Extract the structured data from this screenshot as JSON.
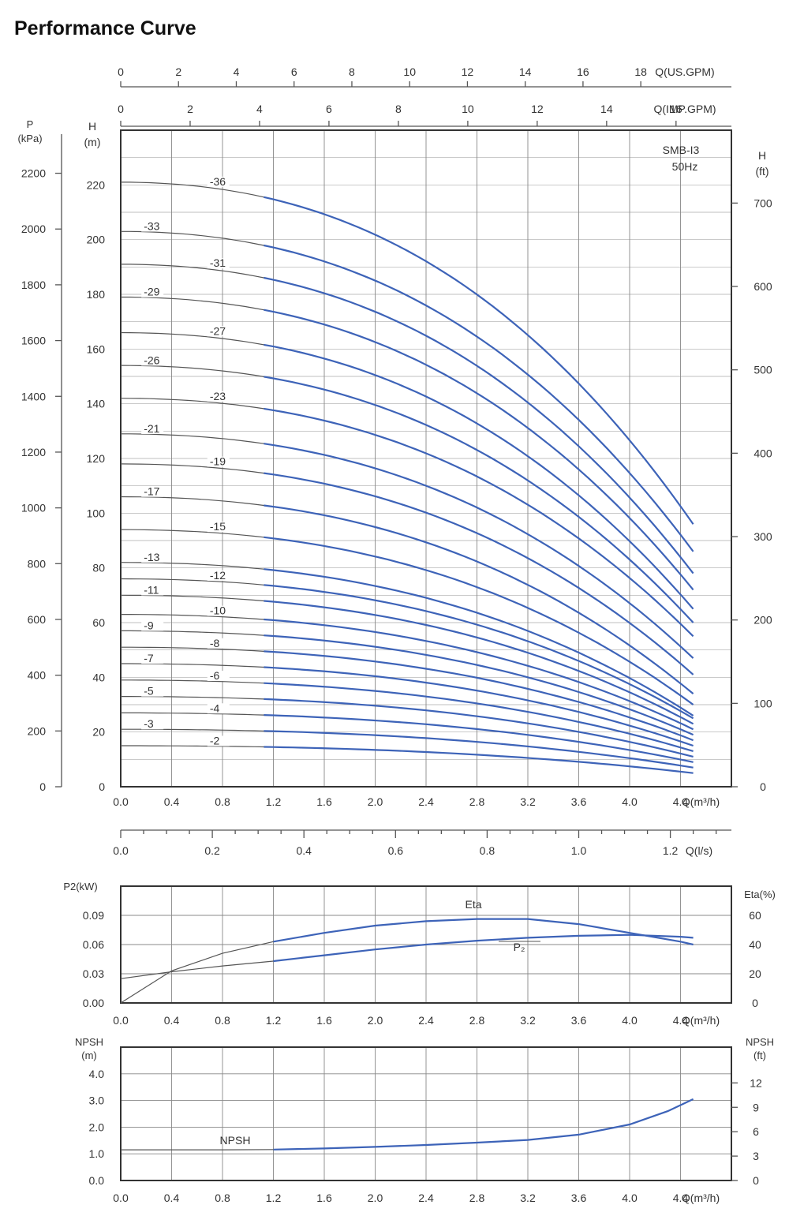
{
  "title": "Performance Curve",
  "colors": {
    "curve": "#3d63b8",
    "curve_low": "#555555",
    "grid": "#888888",
    "frame": "#333333"
  },
  "chart_data": [
    {
      "type": "line",
      "id": "head",
      "model": [
        "SMB-I3",
        "50Hz"
      ],
      "x_unit_label": "Q(m³/h)",
      "xlim": [
        0,
        4.8
      ],
      "ylim": [
        0,
        240
      ],
      "x_ticks": [
        "0.0",
        "0.4",
        "0.8",
        "1.2",
        "1.6",
        "2.0",
        "2.4",
        "2.8",
        "3.2",
        "3.6",
        "4.0",
        "4.4"
      ],
      "left_axis": {
        "label": [
          "H",
          "(m)"
        ],
        "ticks": [
          "0",
          "20",
          "40",
          "60",
          "80",
          "100",
          "120",
          "140",
          "160",
          "180",
          "200",
          "220"
        ]
      },
      "pressure_axis": {
        "label": [
          "P",
          "(kPa)"
        ],
        "ticks": [
          "0",
          "200",
          "400",
          "600",
          "800",
          "1000",
          "1200",
          "1400",
          "1600",
          "1800",
          "2000",
          "2200"
        ]
      },
      "right_axis": {
        "label": [
          "H",
          "(ft)"
        ],
        "ticks": [
          "0",
          "100",
          "200",
          "300",
          "400",
          "500",
          "600",
          "700"
        ]
      },
      "top_axis_us": {
        "label": "Q(US.GPM)",
        "ticks": [
          "0",
          "2",
          "4",
          "6",
          "8",
          "10",
          "12",
          "14",
          "16",
          "18"
        ]
      },
      "top_axis_imp": {
        "label": "Q(IMP.GPM)",
        "ticks": [
          "0",
          "2",
          "4",
          "6",
          "8",
          "10",
          "12",
          "14",
          "16"
        ]
      },
      "bottom_axis_ls": {
        "label": "Q(l/s)",
        "ticks": [
          "0.0",
          "0.2",
          "0.4",
          "0.6",
          "0.8",
          "1.0",
          "1.2"
        ]
      },
      "series": [
        {
          "name": "-36",
          "shutoff": 221,
          "at_max": 96
        },
        {
          "name": "-33",
          "shutoff": 203,
          "at_max": 86
        },
        {
          "name": "-31",
          "shutoff": 191,
          "at_max": 78
        },
        {
          "name": "-29",
          "shutoff": 179,
          "at_max": 72
        },
        {
          "name": "-27",
          "shutoff": 166,
          "at_max": 65
        },
        {
          "name": "-26",
          "shutoff": 154,
          "at_max": 60
        },
        {
          "name": "-23",
          "shutoff": 142,
          "at_max": 55
        },
        {
          "name": "-21",
          "shutoff": 129,
          "at_max": 47
        },
        {
          "name": "-19",
          "shutoff": 118,
          "at_max": 41
        },
        {
          "name": "-17",
          "shutoff": 106,
          "at_max": 34
        },
        {
          "name": "-15",
          "shutoff": 94,
          "at_max": 30
        },
        {
          "name": "-13",
          "shutoff": 82,
          "at_max": 26
        },
        {
          "name": "-12",
          "shutoff": 76,
          "at_max": 25
        },
        {
          "name": "-11",
          "shutoff": 70,
          "at_max": 23
        },
        {
          "name": "-10",
          "shutoff": 63,
          "at_max": 21
        },
        {
          "name": "-9",
          "shutoff": 57,
          "at_max": 19
        },
        {
          "name": "-8",
          "shutoff": 51,
          "at_max": 17
        },
        {
          "name": "-7",
          "shutoff": 45,
          "at_max": 15
        },
        {
          "name": "-6",
          "shutoff": 39,
          "at_max": 13
        },
        {
          "name": "-5",
          "shutoff": 33,
          "at_max": 11
        },
        {
          "name": "-4",
          "shutoff": 27,
          "at_max": 9
        },
        {
          "name": "-3",
          "shutoff": 21,
          "at_max": 7
        },
        {
          "name": "-2",
          "shutoff": 15,
          "at_max": 5
        }
      ],
      "q_max": 4.5,
      "blue_from_q": 1.2
    },
    {
      "type": "line",
      "id": "power",
      "x_unit_label": "Q(m³/h)",
      "xlim": [
        0,
        4.8
      ],
      "left_axis": {
        "label": "P2(kW)",
        "ticks": [
          "0.00",
          "0.03",
          "0.06",
          "0.09"
        ],
        "ylim": [
          0,
          0.12
        ]
      },
      "right_axis": {
        "label": "Eta(%)",
        "ticks": [
          "0",
          "20",
          "40",
          "60"
        ],
        "ylim": [
          0,
          80
        ]
      },
      "x_ticks": [
        "0.0",
        "0.4",
        "0.8",
        "1.2",
        "1.6",
        "2.0",
        "2.4",
        "2.8",
        "3.2",
        "3.6",
        "4.0",
        "4.4"
      ],
      "series": [
        {
          "name": "Eta",
          "axis": "right",
          "x": [
            0,
            0.4,
            0.8,
            1.2,
            1.6,
            2.0,
            2.4,
            2.8,
            3.2,
            3.6,
            4.0,
            4.4,
            4.5
          ],
          "y": [
            0,
            22,
            34,
            42,
            48,
            53,
            56,
            57.5,
            57.5,
            54,
            48,
            42,
            40
          ]
        },
        {
          "name": "P₂",
          "axis": "left",
          "x": [
            0,
            0.4,
            0.8,
            1.2,
            1.6,
            2.0,
            2.4,
            2.8,
            3.2,
            3.6,
            4.0,
            4.4,
            4.5
          ],
          "y": [
            0.025,
            0.032,
            0.038,
            0.043,
            0.049,
            0.055,
            0.06,
            0.064,
            0.067,
            0.069,
            0.07,
            0.068,
            0.067
          ]
        }
      ]
    },
    {
      "type": "line",
      "id": "npsh",
      "x_unit_label": "Q(m³/h)",
      "xlim": [
        0,
        4.8
      ],
      "left_axis": {
        "label": [
          "NPSH",
          "(m)"
        ],
        "ticks": [
          "0.0",
          "1.0",
          "2.0",
          "3.0",
          "4.0"
        ],
        "ylim": [
          0,
          5
        ]
      },
      "right_axis": {
        "label": [
          "NPSH",
          "(ft)"
        ],
        "ticks": [
          "0",
          "3",
          "6",
          "9",
          "12"
        ],
        "ylim": [
          0,
          16.4
        ]
      },
      "x_ticks": [
        "0.0",
        "0.4",
        "0.8",
        "1.2",
        "1.6",
        "2.0",
        "2.4",
        "2.8",
        "3.2",
        "3.6",
        "4.0",
        "4.4"
      ],
      "series": [
        {
          "name": "NPSH",
          "axis": "left",
          "x": [
            0,
            0.4,
            0.8,
            1.2,
            1.6,
            2.0,
            2.4,
            2.8,
            3.2,
            3.6,
            4.0,
            4.3,
            4.5
          ],
          "y": [
            1.15,
            1.15,
            1.15,
            1.16,
            1.2,
            1.26,
            1.33,
            1.42,
            1.52,
            1.72,
            2.1,
            2.6,
            3.05
          ]
        }
      ]
    }
  ]
}
